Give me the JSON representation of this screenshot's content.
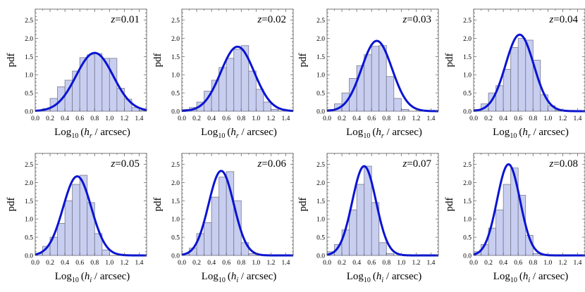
{
  "chart_data": [
    {
      "type": "histogram_with_fit",
      "annotation": "z=0.01",
      "xlabel": "Log10 (h_r / arcsec)",
      "ylabel": "pdf",
      "xlim": [
        0.0,
        1.5
      ],
      "ylim": [
        0,
        2.8
      ],
      "bin_width": 0.1,
      "bin_left_edges": [
        0.0,
        0.1,
        0.2,
        0.3,
        0.4,
        0.5,
        0.6,
        0.7,
        0.8,
        0.9,
        1.0,
        1.1,
        1.2,
        1.3,
        1.4
      ],
      "values": [
        0.02,
        0.07,
        0.35,
        0.67,
        0.85,
        1.1,
        1.47,
        1.55,
        1.58,
        1.45,
        1.45,
        0.63,
        0.33,
        0.1,
        0.02
      ],
      "fit": {
        "mean": 0.8,
        "sigma": 0.25,
        "peak": 1.6
      }
    },
    {
      "type": "histogram_with_fit",
      "annotation": "z=0.02",
      "xlabel": "Log10 (h_r / arcsec)",
      "ylabel": "pdf",
      "xlim": [
        0.0,
        1.5
      ],
      "ylim": [
        0,
        2.8
      ],
      "bin_width": 0.1,
      "bin_left_edges": [
        0.0,
        0.1,
        0.2,
        0.3,
        0.4,
        0.5,
        0.6,
        0.7,
        0.8,
        0.9,
        1.0,
        1.1,
        1.2
      ],
      "values": [
        0.05,
        0.1,
        0.25,
        0.55,
        0.85,
        1.2,
        1.45,
        1.7,
        1.8,
        1.1,
        0.6,
        0.25,
        0.05
      ],
      "fit": {
        "mean": 0.75,
        "sigma": 0.225,
        "peak": 1.77
      }
    },
    {
      "type": "histogram_with_fit",
      "annotation": "z=0.03",
      "xlabel": "Log10 (h_r / arcsec)",
      "ylabel": "pdf",
      "xlim": [
        0.0,
        1.5
      ],
      "ylim": [
        0,
        2.8
      ],
      "bin_width": 0.1,
      "bin_left_edges": [
        0.0,
        0.1,
        0.2,
        0.3,
        0.4,
        0.5,
        0.6,
        0.7,
        0.8,
        0.9,
        1.0
      ],
      "values": [
        0.05,
        0.2,
        0.5,
        0.9,
        1.25,
        1.55,
        1.78,
        1.8,
        0.95,
        0.35,
        0.05
      ],
      "fit": {
        "mean": 0.67,
        "sigma": 0.205,
        "peak": 1.93
      }
    },
    {
      "type": "histogram_with_fit",
      "annotation": "z=0.04",
      "xlabel": "Log10 (h_r / arcsec)",
      "ylabel": "pdf",
      "xlim": [
        0.0,
        1.5
      ],
      "ylim": [
        0,
        2.8
      ],
      "bin_width": 0.1,
      "bin_left_edges": [
        0.0,
        0.1,
        0.2,
        0.3,
        0.4,
        0.5,
        0.6,
        0.7,
        0.8,
        0.9,
        1.0,
        1.1
      ],
      "values": [
        0.05,
        0.2,
        0.5,
        0.7,
        1.15,
        1.75,
        2.0,
        1.95,
        1.4,
        0.45,
        0.15,
        0.02
      ],
      "fit": {
        "mean": 0.62,
        "sigma": 0.19,
        "peak": 2.1
      }
    },
    {
      "type": "histogram_with_fit",
      "annotation": "z=0.05",
      "xlabel": "Log10 (h_i / arcsec)",
      "ylabel": "pdf",
      "xlim": [
        0.0,
        1.5
      ],
      "ylim": [
        0,
        2.8
      ],
      "bin_width": 0.1,
      "bin_left_edges": [
        0.0,
        0.1,
        0.2,
        0.3,
        0.4,
        0.5,
        0.6,
        0.7,
        0.8,
        0.9
      ],
      "values": [
        0.05,
        0.25,
        0.5,
        0.88,
        1.5,
        1.95,
        2.2,
        1.45,
        0.6,
        0.15
      ],
      "fit": {
        "mean": 0.565,
        "sigma": 0.19,
        "peak": 2.17
      }
    },
    {
      "type": "histogram_with_fit",
      "annotation": "z=0.06",
      "xlabel": "Log10 (h_i / arcsec)",
      "ylabel": "pdf",
      "xlim": [
        0.0,
        1.5
      ],
      "ylim": [
        0,
        2.8
      ],
      "bin_width": 0.1,
      "bin_left_edges": [
        0.0,
        0.1,
        0.2,
        0.3,
        0.4,
        0.5,
        0.6,
        0.7,
        0.8,
        0.9
      ],
      "values": [
        0.05,
        0.2,
        0.6,
        0.9,
        1.6,
        2.15,
        2.3,
        1.5,
        0.35,
        0.05
      ],
      "fit": {
        "mean": 0.53,
        "sigma": 0.17,
        "peak": 2.32
      }
    },
    {
      "type": "histogram_with_fit",
      "annotation": "z=0.07",
      "xlabel": "Log10 (h_i / arcsec)",
      "ylabel": "pdf",
      "xlim": [
        0.0,
        1.5
      ],
      "ylim": [
        0,
        2.8
      ],
      "bin_width": 0.1,
      "bin_left_edges": [
        0.0,
        0.1,
        0.2,
        0.3,
        0.4,
        0.5,
        0.6,
        0.7,
        0.8
      ],
      "values": [
        0.1,
        0.3,
        0.7,
        1.25,
        1.95,
        2.45,
        1.45,
        0.35,
        0.05
      ],
      "fit": {
        "mean": 0.5,
        "sigma": 0.16,
        "peak": 2.45
      }
    },
    {
      "type": "histogram_with_fit",
      "annotation": "z=0.08",
      "xlabel": "Log10 (h_i / arcsec)",
      "ylabel": "pdf",
      "xlim": [
        0.0,
        1.5
      ],
      "ylim": [
        0,
        2.8
      ],
      "bin_width": 0.1,
      "bin_left_edges": [
        0.0,
        0.1,
        0.2,
        0.3,
        0.4,
        0.5,
        0.6,
        0.7,
        0.8
      ],
      "values": [
        0.1,
        0.3,
        0.75,
        1.25,
        1.95,
        2.4,
        1.65,
        0.55,
        0.05
      ],
      "fit": {
        "mean": 0.47,
        "sigma": 0.155,
        "peak": 2.5
      }
    }
  ],
  "xticks": [
    "0.0",
    "0.2",
    "0.4",
    "0.6",
    "0.8",
    "1.0",
    "1.2",
    "1.4"
  ],
  "yticks": [
    "0.0",
    "0.5",
    "1.0",
    "1.5",
    "2.0",
    "2.5"
  ],
  "colors": {
    "bar_fill": "#c8cef0",
    "bar_stroke": "#7a7a8c",
    "fit_line": "#0a14d2",
    "axis": "#555555"
  }
}
